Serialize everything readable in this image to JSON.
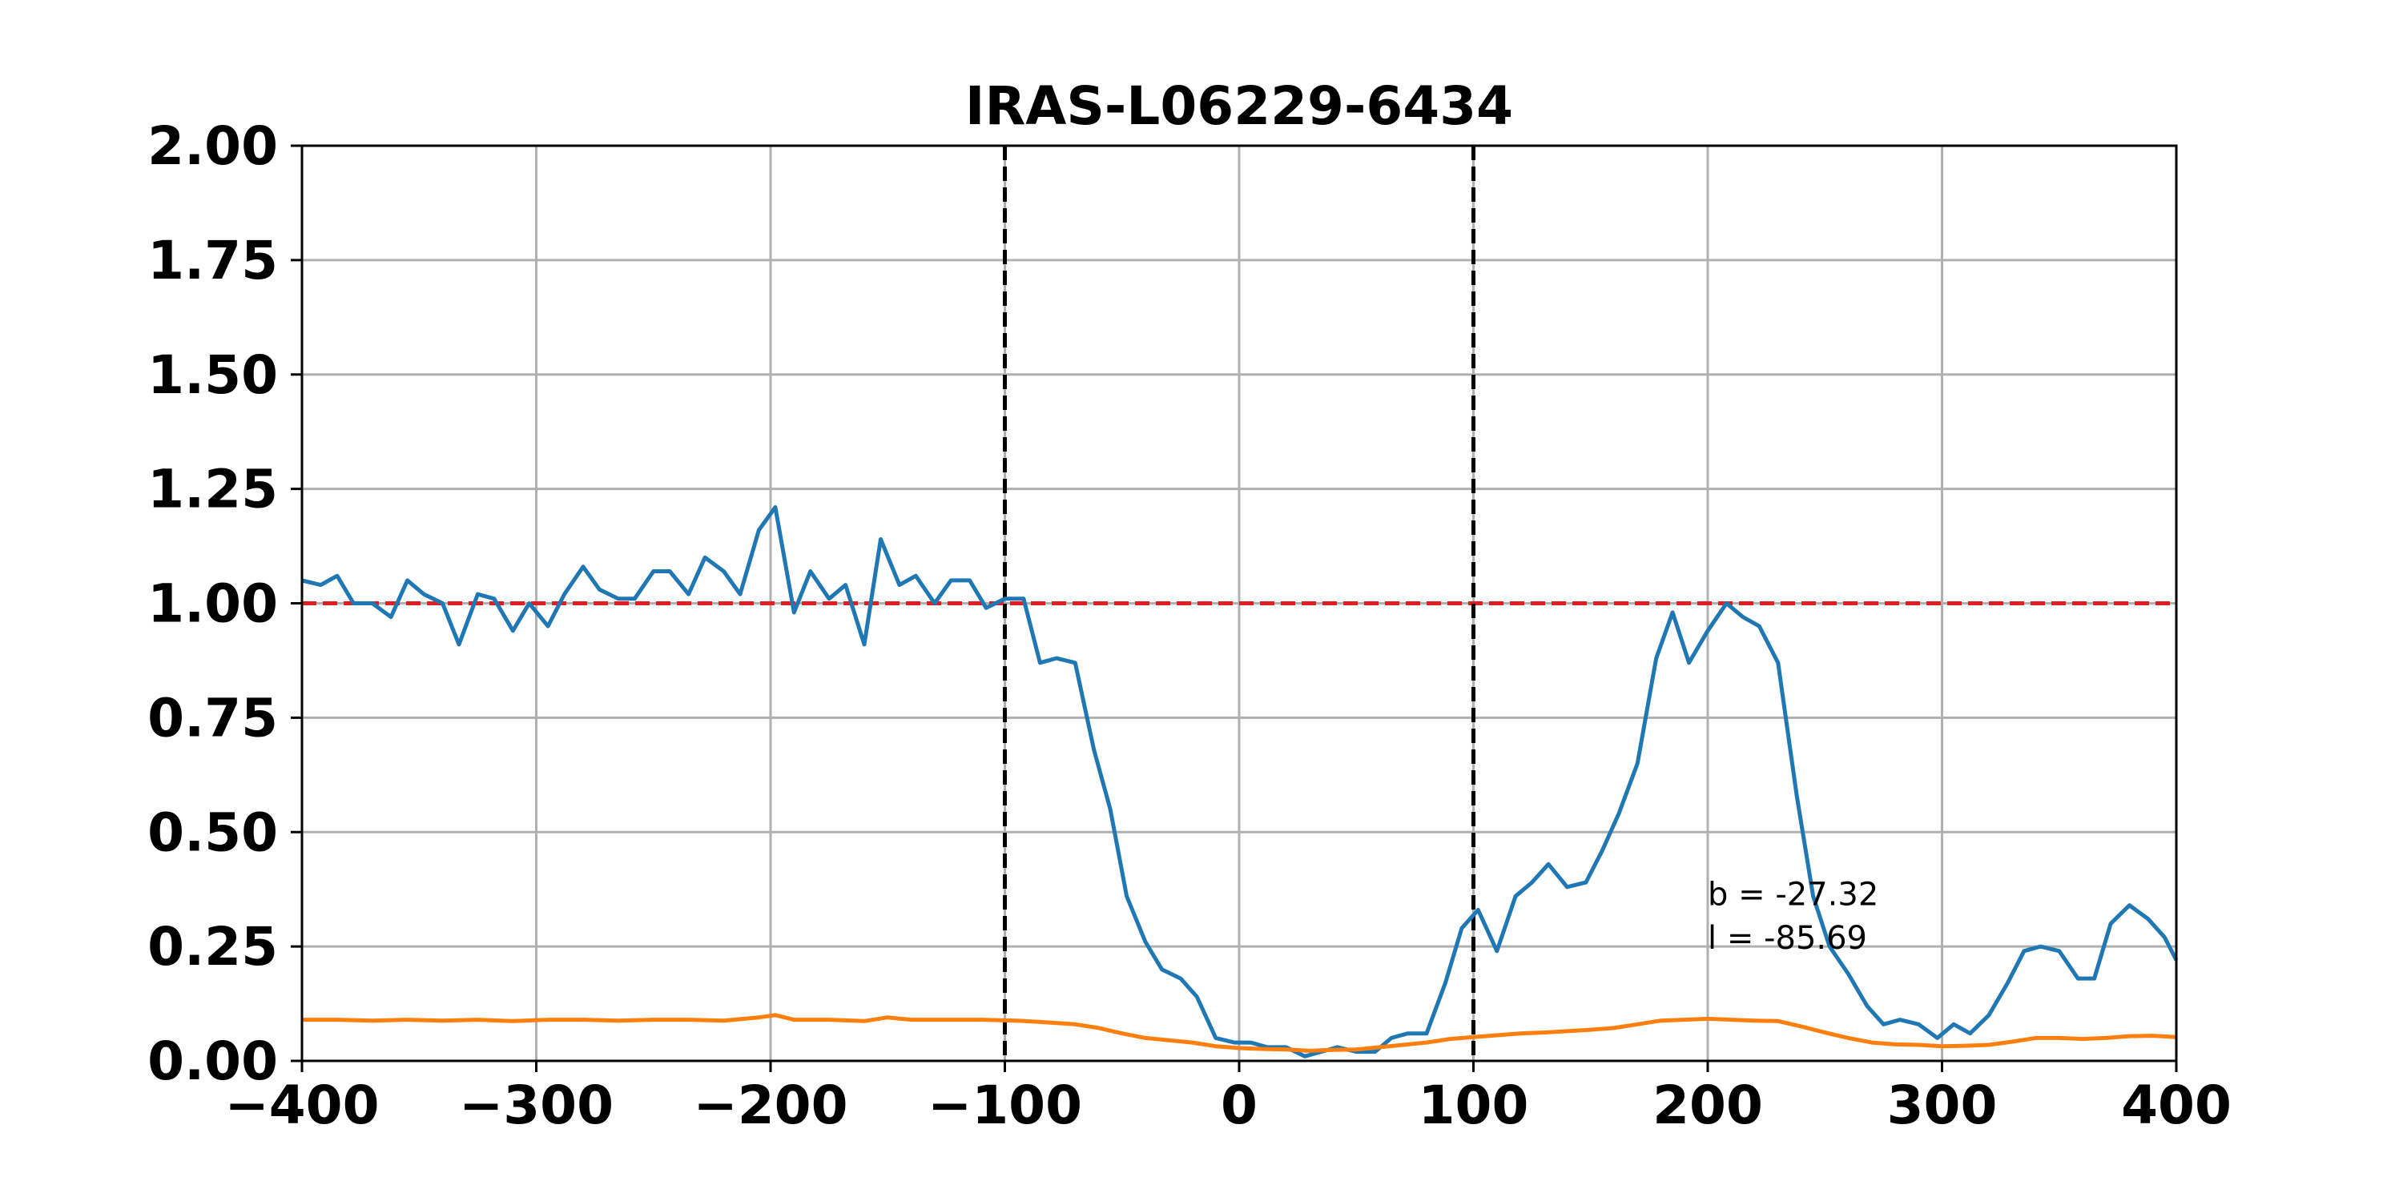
{
  "chart_data": {
    "type": "line",
    "title": "IRAS-L06229-6434",
    "xlabel": "",
    "ylabel": "",
    "xlim": [
      -400,
      400
    ],
    "ylim": [
      0,
      2.0
    ],
    "grid": true,
    "xticks": [
      -400,
      -300,
      -200,
      -100,
      0,
      100,
      200,
      300,
      400
    ],
    "xtick_labels": [
      "−400",
      "−300",
      "−200",
      "−100",
      "0",
      "100",
      "200",
      "300",
      "400"
    ],
    "yticks": [
      0,
      0.25,
      0.5,
      0.75,
      1.0,
      1.25,
      1.5,
      1.75,
      2.0
    ],
    "ytick_labels": [
      "0.00",
      "0.25",
      "0.50",
      "0.75",
      "1.00",
      "1.25",
      "1.50",
      "1.75",
      "2.00"
    ],
    "reference_lines": [
      {
        "orientation": "horizontal",
        "value": 1.0,
        "color": "#e02020",
        "style": "dashed"
      },
      {
        "orientation": "vertical",
        "value": -100,
        "color": "#000000",
        "style": "dashed"
      },
      {
        "orientation": "vertical",
        "value": 100,
        "color": "#000000",
        "style": "dashed"
      }
    ],
    "annotations": [
      {
        "text": "b = -27.32",
        "x": 200,
        "y": 0.34
      },
      {
        "text": "l = -85.69",
        "x": 200,
        "y": 0.245
      }
    ],
    "series": [
      {
        "color": "#1f77b4",
        "x": [
          -400,
          -392,
          -385,
          -378,
          -370,
          -362,
          -355,
          -348,
          -340,
          -333,
          -325,
          -318,
          -310,
          -303,
          -295,
          -288,
          -280,
          -273,
          -265,
          -258,
          -250,
          -243,
          -235,
          -228,
          -220,
          -213,
          -205,
          -198,
          -190,
          -183,
          -175,
          -168,
          -160,
          -153,
          -145,
          -138,
          -130,
          -123,
          -115,
          -108,
          -100,
          -92,
          -85,
          -78,
          -70,
          -62,
          -55,
          -48,
          -40,
          -33,
          -25,
          -18,
          -10,
          -2,
          5,
          12,
          20,
          28,
          35,
          42,
          50,
          58,
          65,
          72,
          80,
          88,
          95,
          102,
          110,
          118,
          125,
          132,
          140,
          148,
          155,
          162,
          170,
          178,
          185,
          192,
          200,
          208,
          215,
          222,
          230,
          238,
          245,
          252,
          260,
          268,
          275,
          282,
          290,
          298,
          305,
          312,
          320,
          328,
          335,
          342,
          350,
          358,
          365,
          372,
          380,
          388,
          395,
          400
        ],
        "y": [
          1.05,
          1.04,
          1.06,
          1.0,
          1.0,
          0.97,
          1.05,
          1.02,
          1.0,
          0.91,
          1.02,
          1.01,
          0.94,
          1.0,
          0.95,
          1.02,
          1.08,
          1.03,
          1.01,
          1.01,
          1.07,
          1.07,
          1.02,
          1.1,
          1.07,
          1.02,
          1.16,
          1.21,
          0.98,
          1.07,
          1.01,
          1.04,
          0.91,
          1.14,
          1.04,
          1.06,
          1.0,
          1.05,
          1.05,
          0.99,
          1.01,
          1.01,
          0.87,
          0.88,
          0.87,
          0.68,
          0.55,
          0.36,
          0.26,
          0.2,
          0.18,
          0.14,
          0.05,
          0.04,
          0.04,
          0.03,
          0.03,
          0.01,
          0.02,
          0.03,
          0.02,
          0.02,
          0.05,
          0.06,
          0.06,
          0.17,
          0.29,
          0.33,
          0.24,
          0.36,
          0.39,
          0.43,
          0.38,
          0.39,
          0.46,
          0.54,
          0.65,
          0.88,
          0.98,
          0.87,
          0.94,
          1.0,
          0.97,
          0.95,
          0.87,
          0.58,
          0.36,
          0.25,
          0.19,
          0.12,
          0.08,
          0.09,
          0.08,
          0.05,
          0.08,
          0.06,
          0.1,
          0.17,
          0.24,
          0.25,
          0.24,
          0.18,
          0.18,
          0.3,
          0.34,
          0.31,
          0.27,
          0.22
        ]
      },
      {
        "color": "#ff7f0e",
        "x": [
          -400,
          -385,
          -370,
          -355,
          -340,
          -325,
          -310,
          -295,
          -280,
          -265,
          -250,
          -235,
          -220,
          -205,
          -198,
          -190,
          -175,
          -160,
          -150,
          -140,
          -125,
          -110,
          -95,
          -85,
          -70,
          -60,
          -50,
          -40,
          -30,
          -20,
          -10,
          0,
          10,
          20,
          30,
          40,
          50,
          60,
          70,
          80,
          90,
          100,
          110,
          120,
          130,
          140,
          150,
          160,
          170,
          180,
          190,
          200,
          210,
          220,
          230,
          240,
          250,
          260,
          270,
          280,
          290,
          300,
          310,
          320,
          330,
          340,
          350,
          360,
          370,
          380,
          390,
          400
        ],
        "y": [
          0.09,
          0.09,
          0.088,
          0.09,
          0.088,
          0.09,
          0.087,
          0.09,
          0.09,
          0.088,
          0.09,
          0.09,
          0.088,
          0.095,
          0.1,
          0.09,
          0.09,
          0.087,
          0.095,
          0.09,
          0.09,
          0.09,
          0.088,
          0.085,
          0.08,
          0.072,
          0.06,
          0.05,
          0.045,
          0.04,
          0.032,
          0.028,
          0.026,
          0.025,
          0.022,
          0.024,
          0.025,
          0.03,
          0.035,
          0.04,
          0.048,
          0.052,
          0.056,
          0.06,
          0.062,
          0.065,
          0.068,
          0.072,
          0.08,
          0.088,
          0.09,
          0.092,
          0.09,
          0.088,
          0.087,
          0.075,
          0.062,
          0.05,
          0.04,
          0.036,
          0.035,
          0.032,
          0.033,
          0.035,
          0.042,
          0.05,
          0.05,
          0.048,
          0.05,
          0.054,
          0.055,
          0.052
        ]
      }
    ]
  }
}
